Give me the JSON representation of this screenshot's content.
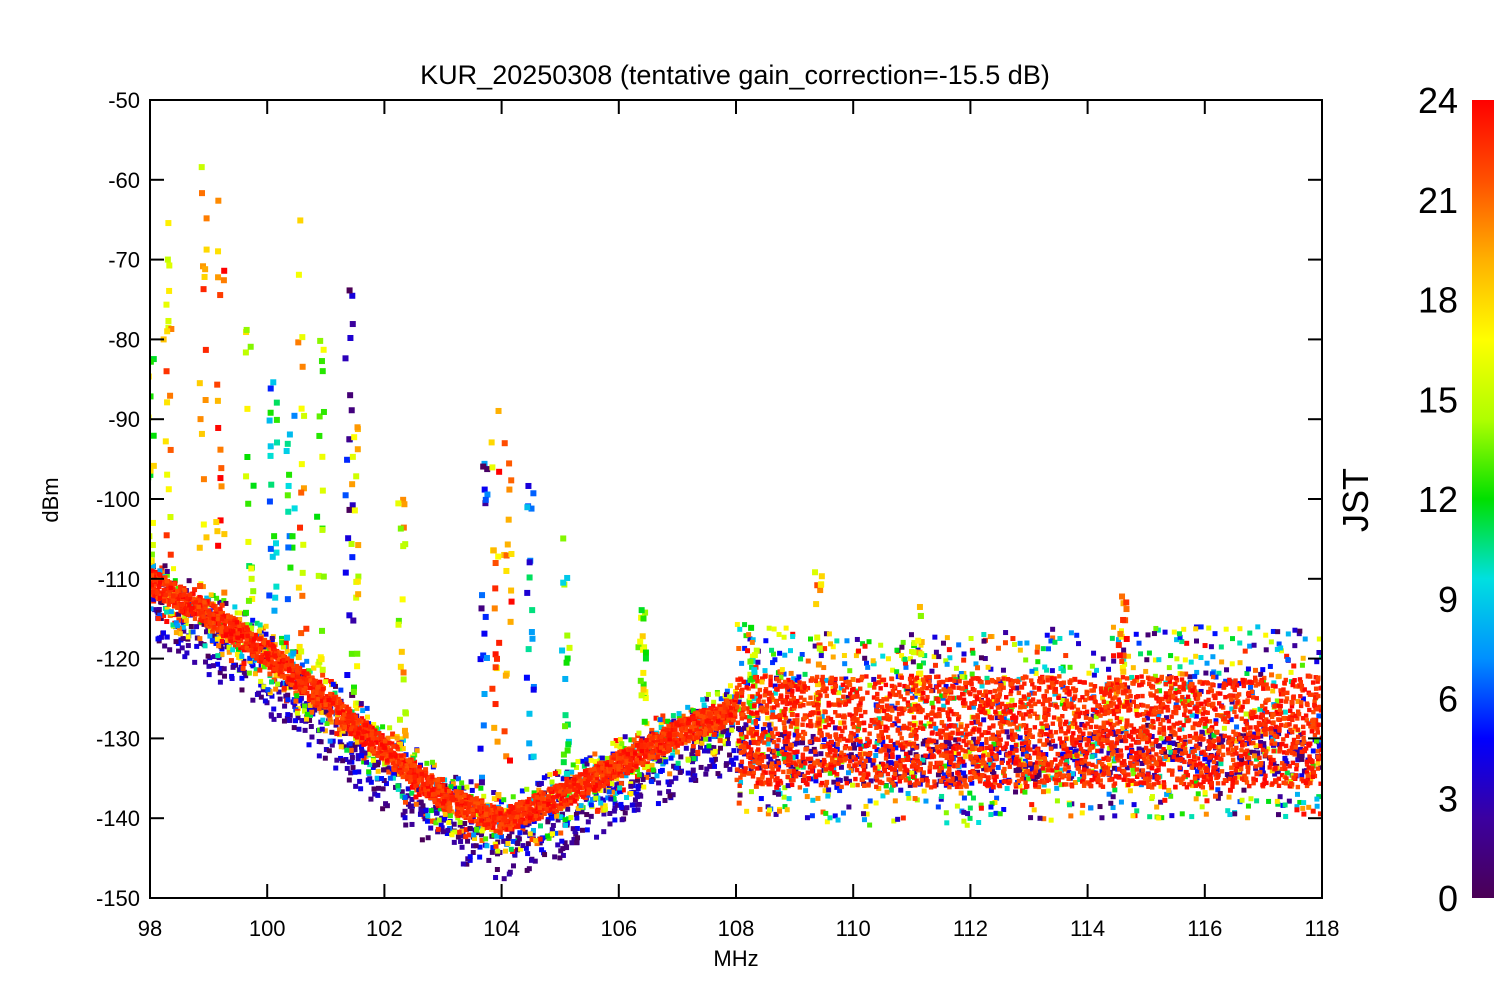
{
  "chart_data": {
    "type": "scatter",
    "title": "KUR_20250308 (tentative gain_correction=-15.5 dB)",
    "xlabel": "MHz",
    "ylabel": "dBm",
    "xlim": [
      98,
      118
    ],
    "ylim": [
      -150,
      -50
    ],
    "xticks": [
      98,
      100,
      102,
      104,
      106,
      108,
      110,
      112,
      114,
      116,
      118
    ],
    "yticks": [
      -50,
      -60,
      -70,
      -80,
      -90,
      -100,
      -110,
      -120,
      -130,
      -140,
      -150
    ],
    "grid": false,
    "colorbar": {
      "label": "JST",
      "range": [
        0,
        24
      ],
      "ticks": [
        0,
        3,
        6,
        9,
        12,
        15,
        18,
        21,
        24
      ],
      "colormap": [
        "#4b0055",
        "#3b00a0",
        "#0000ff",
        "#0090ff",
        "#00e0e0",
        "#00e000",
        "#b0ff00",
        "#ffff00",
        "#ffb000",
        "#ff5000",
        "#ff0000"
      ]
    },
    "noise_floor": {
      "x": [
        98,
        99,
        100,
        101,
        102,
        103,
        104,
        105,
        106,
        107,
        108,
        110,
        112,
        114,
        116,
        118
      ],
      "y": [
        -111,
        -115,
        -120,
        -126,
        -132,
        -138,
        -141,
        -138,
        -134,
        -130,
        -127,
        -129,
        -129,
        -128,
        -128,
        -128
      ],
      "band_above_108": [
        -137,
        -120
      ]
    },
    "spikes": [
      {
        "x": 98.0,
        "peak": -76,
        "jst": 15
      },
      {
        "x": 98.3,
        "peak": -64,
        "jst": 19
      },
      {
        "x": 98.9,
        "peak": -58,
        "jst": 19
      },
      {
        "x": 99.2,
        "peak": -59,
        "jst": 21
      },
      {
        "x": 99.7,
        "peak": -76,
        "jst": 14
      },
      {
        "x": 100.1,
        "peak": -84,
        "jst": 9
      },
      {
        "x": 100.4,
        "peak": -89,
        "jst": 10
      },
      {
        "x": 100.6,
        "peak": -64,
        "jst": 19
      },
      {
        "x": 100.9,
        "peak": -80,
        "jst": 14
      },
      {
        "x": 101.4,
        "peak": -72,
        "jst": 3
      },
      {
        "x": 101.5,
        "peak": -91,
        "jst": 16
      },
      {
        "x": 102.3,
        "peak": -97,
        "jst": 17
      },
      {
        "x": 103.7,
        "peak": -93,
        "jst": 4
      },
      {
        "x": 103.9,
        "peak": -86,
        "jst": 20
      },
      {
        "x": 104.1,
        "peak": -86,
        "jst": 21
      },
      {
        "x": 104.5,
        "peak": -96,
        "jst": 7
      },
      {
        "x": 105.1,
        "peak": -102,
        "jst": 12
      },
      {
        "x": 106.4,
        "peak": -113,
        "jst": 15
      },
      {
        "x": 108.3,
        "peak": -115,
        "jst": 13
      },
      {
        "x": 109.4,
        "peak": -109,
        "jst": 19
      },
      {
        "x": 111.1,
        "peak": -111,
        "jst": 16
      },
      {
        "x": 114.6,
        "peak": -112,
        "jst": 21
      }
    ]
  }
}
